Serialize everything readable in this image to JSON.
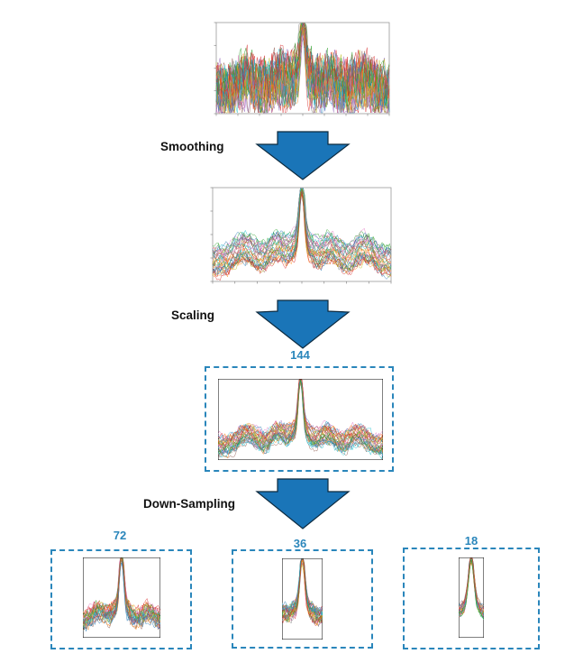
{
  "steps": {
    "smoothing": "Smoothing",
    "scaling": "Scaling",
    "downsampling": "Down-Sampling"
  },
  "sizes": {
    "scaled": "144",
    "ds_72": "72",
    "ds_36": "36",
    "ds_18": "18"
  },
  "colors": {
    "arrow": "#1a75b8",
    "dashed_box": "#2a86bb",
    "size_label": "#2a86bb",
    "frame": "#000000",
    "axes_frame": "#9a9a9a"
  },
  "icons": {
    "arrow": "down-arrow-icon"
  },
  "spectra": {
    "series_count": 34,
    "palette": [
      "#1f77b4",
      "#ff7f0e",
      "#2ca02c",
      "#d62728",
      "#9467bd",
      "#8c564b",
      "#e377c2",
      "#7f7f7f",
      "#bcbd22",
      "#17becf"
    ]
  }
}
